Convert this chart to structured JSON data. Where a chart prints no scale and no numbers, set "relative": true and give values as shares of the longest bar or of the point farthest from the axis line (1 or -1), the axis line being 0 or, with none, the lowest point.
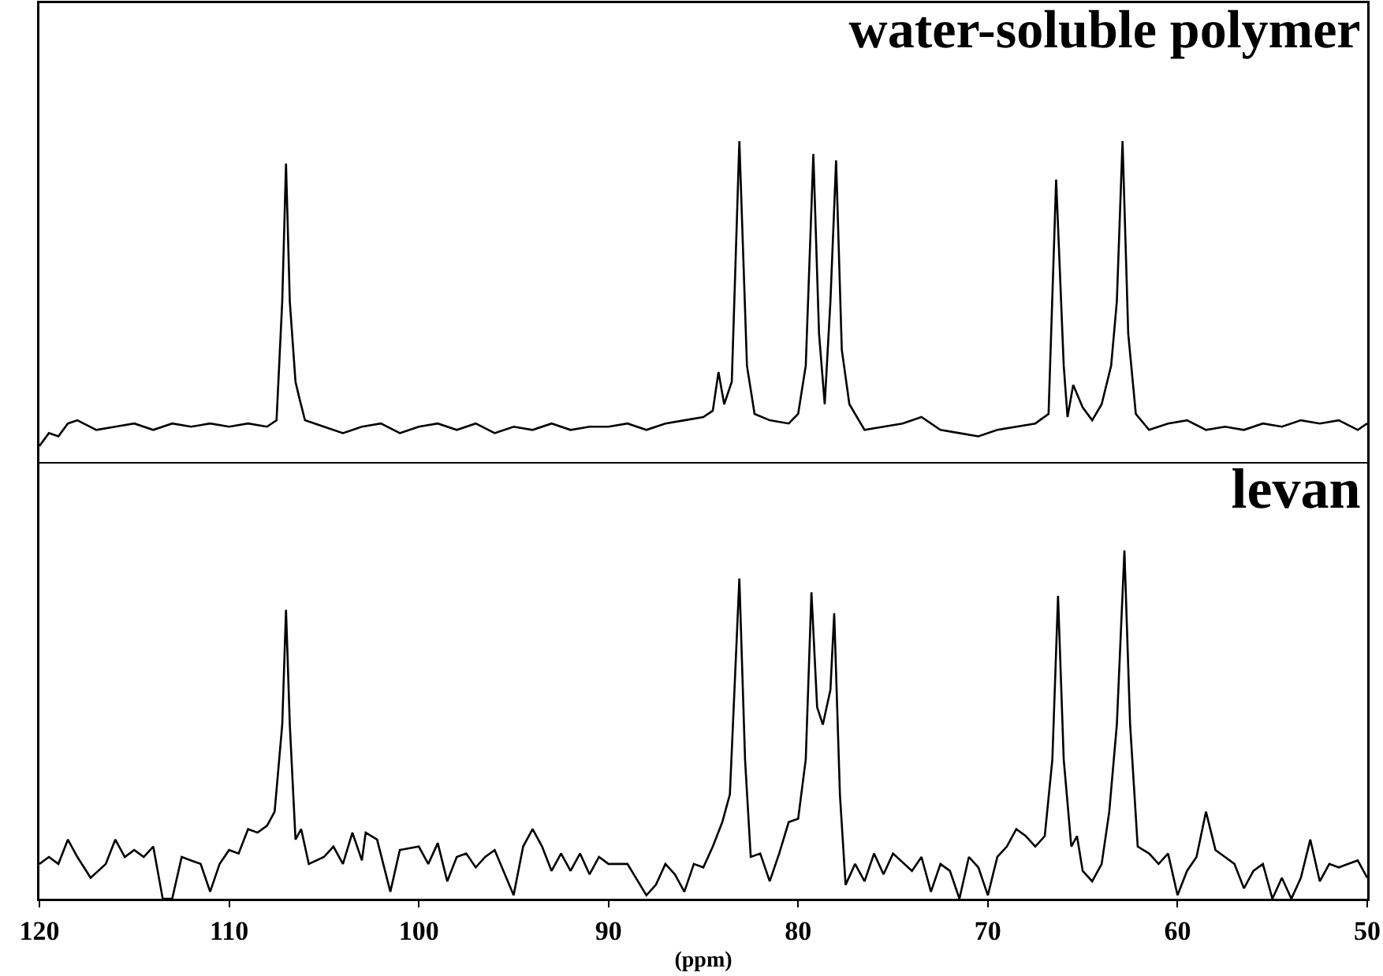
{
  "chart_data": [
    {
      "type": "line",
      "title": "water-soluble polymer",
      "relative": true,
      "xlim": [
        120,
        50
      ],
      "tick_labels": false,
      "x": [
        120,
        119.5,
        119,
        118.5,
        118,
        117,
        116,
        115,
        114,
        113,
        112,
        111,
        110,
        109,
        108,
        107.5,
        107.2,
        107,
        106.8,
        106.5,
        106.3,
        106,
        105,
        104,
        103,
        102,
        101,
        100,
        99,
        98,
        97,
        96,
        95,
        94,
        93,
        92,
        91,
        90,
        89,
        88,
        87,
        86,
        85,
        84.5,
        84.2,
        83.9,
        83.5,
        83.1,
        82.7,
        82.3,
        81.5,
        80.5,
        80,
        79.6,
        79.2,
        78.9,
        78.6,
        78.3,
        78.0,
        77.7,
        77.3,
        76.5,
        75.5,
        74.5,
        73.5,
        72.5,
        71.5,
        70.5,
        69.5,
        68.5,
        67.5,
        66.8,
        66.4,
        66.0,
        65.8,
        65.5,
        65,
        64.5,
        64,
        63.5,
        63.2,
        62.9,
        62.6,
        62.2,
        61.5,
        60.5,
        59.5,
        58.5,
        57.5,
        56.5,
        55.5,
        54.5,
        53.5,
        52.5,
        51.5,
        50.5,
        50
      ],
      "series": [
        {
          "color": "#000000",
          "values": [
            0.05,
            0.09,
            0.08,
            0.12,
            0.13,
            0.1,
            0.11,
            0.12,
            0.1,
            0.12,
            0.11,
            0.12,
            0.11,
            0.12,
            0.11,
            0.13,
            0.5,
            0.93,
            0.5,
            0.25,
            0.2,
            0.13,
            0.11,
            0.09,
            0.11,
            0.12,
            0.09,
            0.11,
            0.12,
            0.1,
            0.12,
            0.09,
            0.11,
            0.1,
            0.12,
            0.1,
            0.11,
            0.11,
            0.12,
            0.1,
            0.12,
            0.13,
            0.14,
            0.16,
            0.28,
            0.18,
            0.25,
            1.0,
            0.3,
            0.15,
            0.13,
            0.12,
            0.15,
            0.3,
            0.96,
            0.4,
            0.18,
            0.5,
            0.94,
            0.35,
            0.18,
            0.1,
            0.11,
            0.12,
            0.14,
            0.1,
            0.09,
            0.08,
            0.1,
            0.11,
            0.12,
            0.15,
            0.88,
            0.3,
            0.14,
            0.24,
            0.17,
            0.13,
            0.18,
            0.3,
            0.5,
            1.0,
            0.4,
            0.15,
            0.1,
            0.12,
            0.13,
            0.1,
            0.11,
            0.1,
            0.12,
            0.11,
            0.13,
            0.12,
            0.13,
            0.1,
            0.12
          ]
        }
      ]
    },
    {
      "type": "line",
      "title": "levan",
      "xlabel": "(ppm)",
      "relative": true,
      "xlim": [
        120,
        50
      ],
      "xticks": [
        120,
        110,
        100,
        90,
        80,
        70,
        60,
        50
      ],
      "tick_labels": "x",
      "x": [
        120,
        119.5,
        119,
        118.5,
        118,
        117.3,
        116.5,
        116,
        115.5,
        115,
        114.5,
        114,
        113.5,
        113,
        112.5,
        112,
        111.5,
        111,
        110.5,
        110,
        109.5,
        109,
        108.5,
        108,
        107.6,
        107.2,
        107,
        106.8,
        106.5,
        106.2,
        105.8,
        105,
        104.5,
        104,
        103.5,
        103,
        102.8,
        102.2,
        101.5,
        101,
        100,
        99.5,
        99,
        98.5,
        98,
        97.5,
        97,
        96.5,
        96,
        95,
        94.5,
        94,
        93.5,
        93,
        92.5,
        92,
        91.5,
        91,
        90.5,
        90,
        89,
        88,
        87.5,
        87,
        86.5,
        86,
        85.5,
        85,
        84.5,
        84,
        83.6,
        83.1,
        82.8,
        82.5,
        82,
        81.5,
        81,
        80.5,
        80,
        79.6,
        79.3,
        79.0,
        78.7,
        78.3,
        78.1,
        77.8,
        77.5,
        77,
        76.5,
        76,
        75.5,
        75,
        74,
        73.5,
        73,
        72.5,
        72,
        71.5,
        71,
        70.5,
        70,
        69.5,
        69,
        68.5,
        68,
        67.5,
        67,
        66.6,
        66.3,
        66.0,
        65.6,
        65.3,
        65,
        64.5,
        64,
        63.6,
        63.2,
        62.8,
        62.5,
        62.1,
        61.5,
        61,
        60.5,
        60,
        59.5,
        59,
        58.5,
        58,
        57.5,
        57,
        56.5,
        56,
        55.5,
        55,
        54.5,
        54,
        53.5,
        53,
        52.5,
        52,
        51.5,
        51,
        50.5,
        50
      ],
      "series": [
        {
          "color": "#000000",
          "values": [
            0.1,
            0.12,
            0.1,
            0.17,
            0.12,
            0.06,
            0.1,
            0.17,
            0.12,
            0.14,
            0.12,
            0.15,
            0.0,
            0.0,
            0.12,
            0.11,
            0.1,
            0.02,
            0.1,
            0.14,
            0.13,
            0.2,
            0.19,
            0.21,
            0.25,
            0.5,
            0.83,
            0.5,
            0.17,
            0.2,
            0.1,
            0.12,
            0.15,
            0.1,
            0.19,
            0.11,
            0.19,
            0.17,
            0.02,
            0.14,
            0.15,
            0.1,
            0.16,
            0.05,
            0.12,
            0.13,
            0.09,
            0.12,
            0.14,
            0.01,
            0.15,
            0.2,
            0.15,
            0.08,
            0.13,
            0.08,
            0.13,
            0.07,
            0.12,
            0.1,
            0.1,
            0.01,
            0.04,
            0.1,
            0.07,
            0.02,
            0.1,
            0.09,
            0.15,
            0.22,
            0.3,
            0.92,
            0.4,
            0.12,
            0.13,
            0.05,
            0.13,
            0.22,
            0.23,
            0.4,
            0.88,
            0.55,
            0.5,
            0.6,
            0.82,
            0.3,
            0.04,
            0.1,
            0.05,
            0.13,
            0.07,
            0.13,
            0.08,
            0.12,
            0.02,
            0.1,
            0.08,
            0.0,
            0.12,
            0.09,
            0.01,
            0.12,
            0.15,
            0.2,
            0.18,
            0.15,
            0.18,
            0.4,
            0.87,
            0.4,
            0.15,
            0.18,
            0.08,
            0.05,
            0.1,
            0.25,
            0.5,
            1.0,
            0.5,
            0.15,
            0.13,
            0.1,
            0.13,
            0.01,
            0.08,
            0.12,
            0.25,
            0.14,
            0.12,
            0.1,
            0.03,
            0.08,
            0.1,
            0.0,
            0.06,
            0.0,
            0.06,
            0.17,
            0.05,
            0.1,
            0.09,
            0.1,
            0.11,
            0.06
          ]
        }
      ]
    }
  ]
}
